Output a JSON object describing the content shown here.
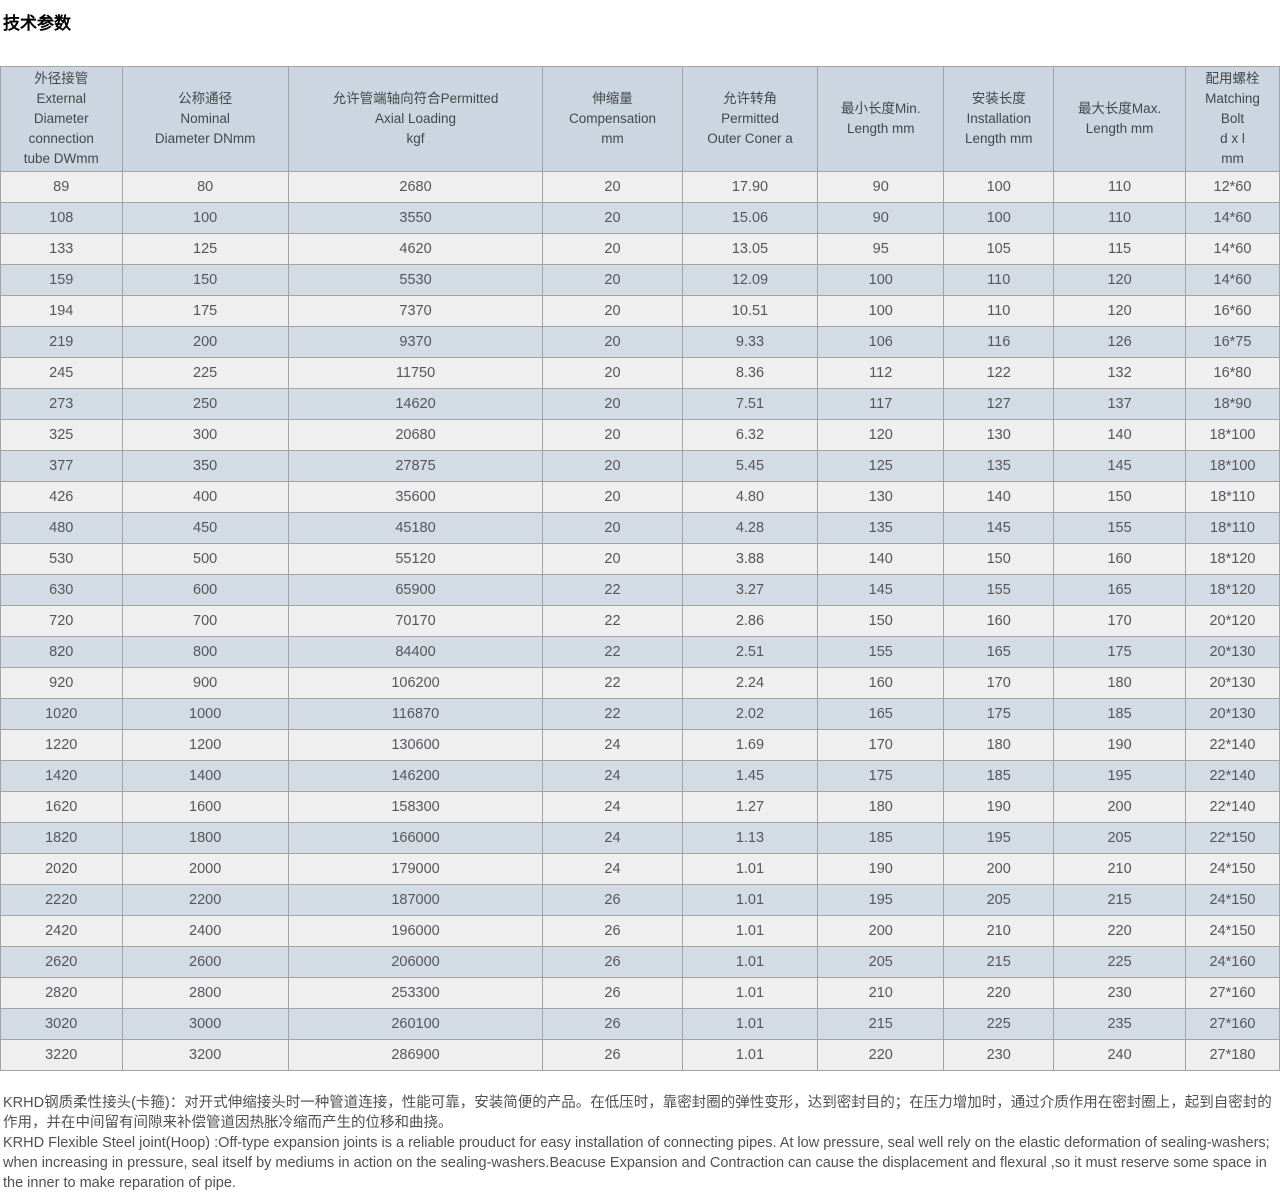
{
  "page": {
    "title": "技术参数"
  },
  "table": {
    "headers": [
      "外径接管\nExternal\nDiameter\nconnection\ntube DWmm",
      "公称通径\nNominal\nDiameter DNmm",
      "允许管端轴向符合Permitted\nAxial Loading\nkgf",
      "伸缩量\nCompensation\nmm",
      "允许转角\nPermitted\nOuter Coner a",
      "最小长度Min.\nLength mm",
      "安装长度\nInstallation\nLength mm",
      "最大长度Max.\nLength mm",
      "配用螺栓\nMatching\nBolt\nd x l\nmm"
    ],
    "rows": [
      [
        "89",
        "80",
        "2680",
        "20",
        "17.90",
        "90",
        "100",
        "110",
        "12*60"
      ],
      [
        "108",
        "100",
        "3550",
        "20",
        "15.06",
        "90",
        "100",
        "110",
        "14*60"
      ],
      [
        "133",
        "125",
        "4620",
        "20",
        "13.05",
        "95",
        "105",
        "115",
        "14*60"
      ],
      [
        "159",
        "150",
        "5530",
        "20",
        "12.09",
        "100",
        "110",
        "120",
        "14*60"
      ],
      [
        "194",
        "175",
        "7370",
        "20",
        "10.51",
        "100",
        "110",
        "120",
        "16*60"
      ],
      [
        "219",
        "200",
        "9370",
        "20",
        "9.33",
        "106",
        "116",
        "126",
        "16*75"
      ],
      [
        "245",
        "225",
        "11750",
        "20",
        "8.36",
        "112",
        "122",
        "132",
        "16*80"
      ],
      [
        "273",
        "250",
        "14620",
        "20",
        "7.51",
        "117",
        "127",
        "137",
        "18*90"
      ],
      [
        "325",
        "300",
        "20680",
        "20",
        "6.32",
        "120",
        "130",
        "140",
        "18*100"
      ],
      [
        "377",
        "350",
        "27875",
        "20",
        "5.45",
        "125",
        "135",
        "145",
        "18*100"
      ],
      [
        "426",
        "400",
        "35600",
        "20",
        "4.80",
        "130",
        "140",
        "150",
        "18*110"
      ],
      [
        "480",
        "450",
        "45180",
        "20",
        "4.28",
        "135",
        "145",
        "155",
        "18*110"
      ],
      [
        "530",
        "500",
        "55120",
        "20",
        "3.88",
        "140",
        "150",
        "160",
        "18*120"
      ],
      [
        "630",
        "600",
        "65900",
        "22",
        "3.27",
        "145",
        "155",
        "165",
        "18*120"
      ],
      [
        "720",
        "700",
        "70170",
        "22",
        "2.86",
        "150",
        "160",
        "170",
        "20*120"
      ],
      [
        "820",
        "800",
        "84400",
        "22",
        "2.51",
        "155",
        "165",
        "175",
        "20*130"
      ],
      [
        "920",
        "900",
        "106200",
        "22",
        "2.24",
        "160",
        "170",
        "180",
        "20*130"
      ],
      [
        "1020",
        "1000",
        "116870",
        "22",
        "2.02",
        "165",
        "175",
        "185",
        "20*130"
      ],
      [
        "1220",
        "1200",
        "130600",
        "24",
        "1.69",
        "170",
        "180",
        "190",
        "22*140"
      ],
      [
        "1420",
        "1400",
        "146200",
        "24",
        "1.45",
        "175",
        "185",
        "195",
        "22*140"
      ],
      [
        "1620",
        "1600",
        "158300",
        "24",
        "1.27",
        "180",
        "190",
        "200",
        "22*140"
      ],
      [
        "1820",
        "1800",
        "166000",
        "24",
        "1.13",
        "185",
        "195",
        "205",
        "22*150"
      ],
      [
        "2020",
        "2000",
        "179000",
        "24",
        "1.01",
        "190",
        "200",
        "210",
        "24*150"
      ],
      [
        "2220",
        "2200",
        "187000",
        "26",
        "1.01",
        "195",
        "205",
        "215",
        "24*150"
      ],
      [
        "2420",
        "2400",
        "196000",
        "26",
        "1.01",
        "200",
        "210",
        "220",
        "24*150"
      ],
      [
        "2620",
        "2600",
        "206000",
        "26",
        "1.01",
        "205",
        "215",
        "225",
        "24*160"
      ],
      [
        "2820",
        "2800",
        "253300",
        "26",
        "1.01",
        "210",
        "220",
        "230",
        "27*160"
      ],
      [
        "3020",
        "3000",
        "260100",
        "26",
        "1.01",
        "215",
        "225",
        "235",
        "27*160"
      ],
      [
        "3220",
        "3200",
        "286900",
        "26",
        "1.01",
        "220",
        "230",
        "240",
        "27*180"
      ]
    ]
  },
  "notes": {
    "chinese_text": "KRHD钢质柔性接头(卡箍)：对开式伸缩接头时一种管道连接，性能可靠，安装简便的产品。在低压时，靠密封圈的弹性变形，达到密封目的；在压力增加时，通过介质作用在密封圈上，起到自密封的作用，并在中间留有间隙来补偿管道因热胀冷缩而产生的位移和曲挠。",
    "english_text": "KRHD Flexible Steel joint(Hoop) :Off-type expansion joints is a reliable prouduct for easy installation of connecting pipes. At low pressure, seal well rely on the elastic deformation of sealing-washers; when increasing in pressure, seal itself by mediums in action on the sealing-washers.Beacuse Expansion and Contraction can cause the displacement and flexural ,so it must reserve some space in the inner to make reparation of pipe."
  },
  "colors": {
    "header_bg": "#ccd6e0",
    "row_odd_bg": "#efefef",
    "row_even_bg": "#d3dce4",
    "border": "#a3a3a3",
    "text": "#54565a"
  }
}
